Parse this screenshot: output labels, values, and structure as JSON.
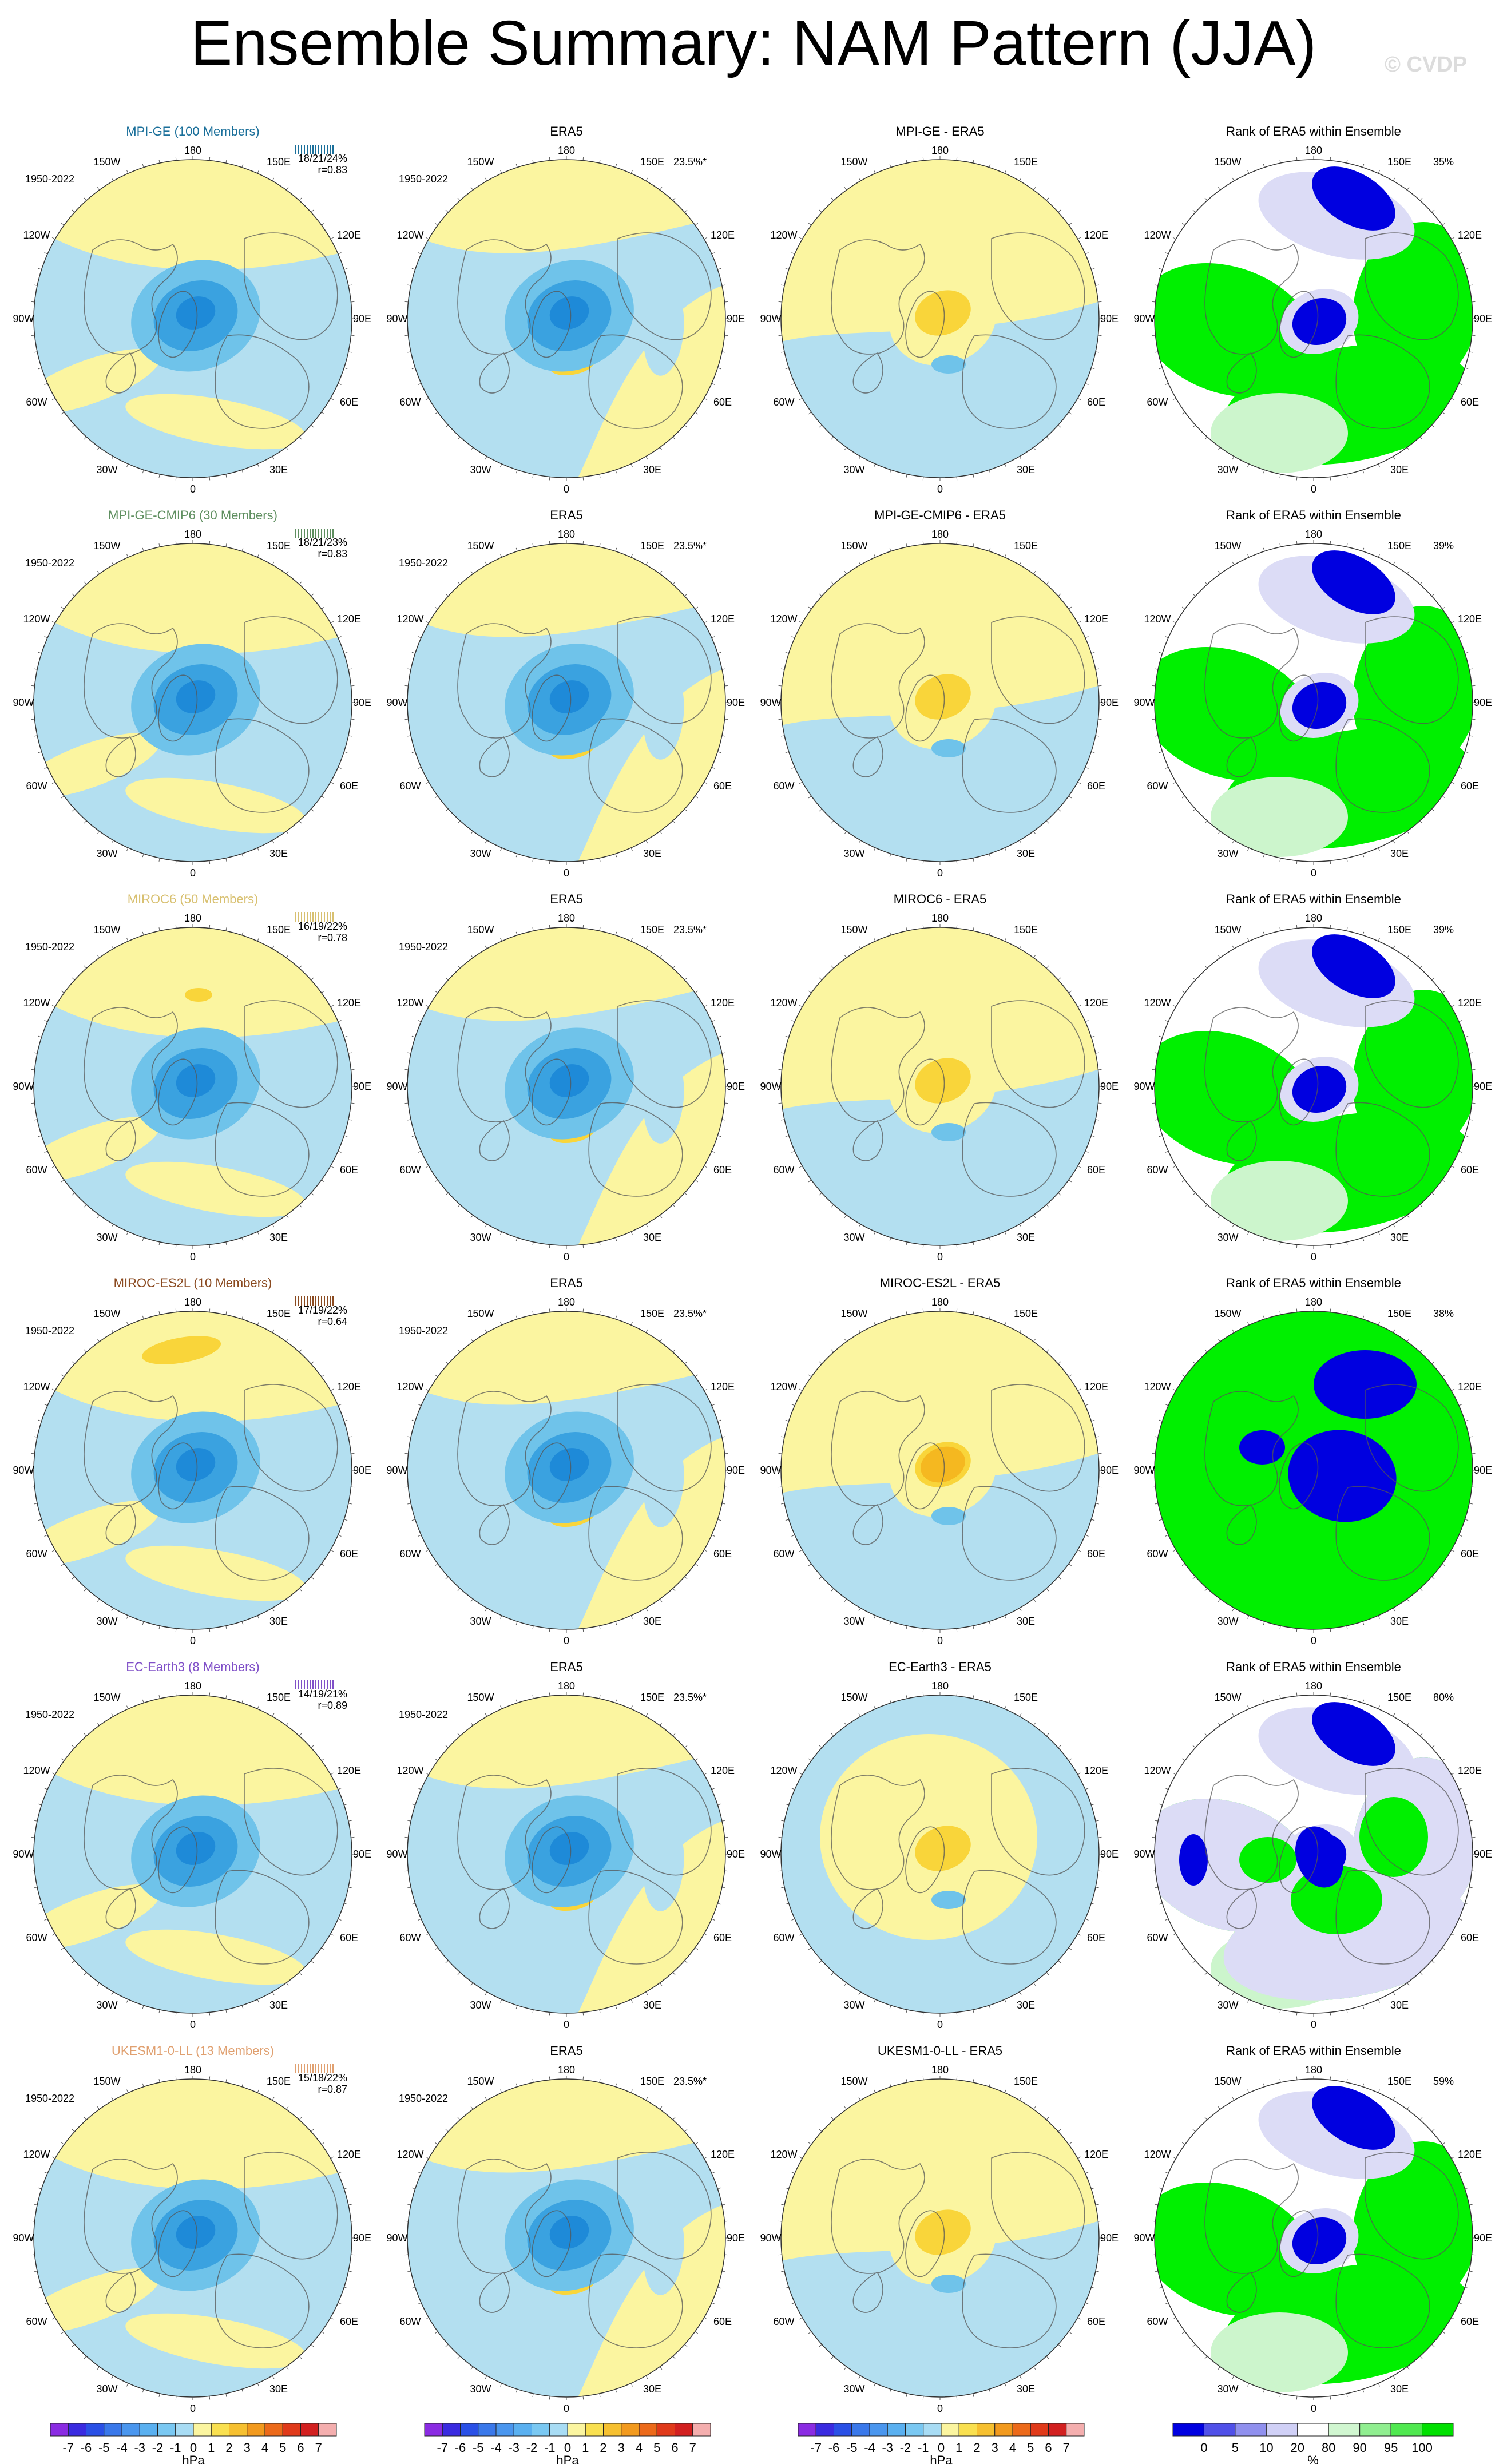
{
  "title": "Ensemble Summary: NAM Pattern (JJA)",
  "watermark": "© CVDP",
  "period": "1950-2022",
  "era5_pct": "23.5%*",
  "lon_labels": {
    "top": "180",
    "bottom": "0",
    "left": "90W",
    "right": "90E",
    "tl_outer": "150W",
    "tr_outer": "150E",
    "tl_inner": "120W",
    "tr_inner": "120E",
    "bl_inner": "60W",
    "br_inner": "60E",
    "bl_outer": "30W",
    "br_outer": "30E"
  },
  "colors": {
    "pos_fill": "#fbf5a0",
    "neg_fill": "#b3dff0",
    "pos_mid": "#f9d53a",
    "pos_strong": "#f5b820",
    "neg_mid": "#6fc3ea",
    "neg_strong": "#3aa2e0",
    "neg_core": "#1e8ad8",
    "rank_green": "#00f000",
    "rank_lightgreen": "#ccf5cc",
    "rank_blue": "#0000e0",
    "rank_lav": "#dcdcf6",
    "rank_white": "#ffffff"
  },
  "rows": [
    {
      "model": "MPI-GE (100 Members)",
      "model_color": "#1a6f9a",
      "stats": "18/21/24%",
      "r": "r=0.83",
      "diff_title": "MPI-GE - ERA5",
      "rank_pct": "35%"
    },
    {
      "model": "MPI-GE-CMIP6 (30 Members)",
      "model_color": "#5f8f60",
      "stats": "18/21/23%",
      "r": "r=0.83",
      "diff_title": "MPI-GE-CMIP6 - ERA5",
      "rank_pct": "39%"
    },
    {
      "model": "MIROC6 (50 Members)",
      "model_color": "#d8c070",
      "stats": "16/19/22%",
      "r": "r=0.78",
      "diff_title": "MIROC6 - ERA5",
      "rank_pct": "39%"
    },
    {
      "model": "MIROC-ES2L (10 Members)",
      "model_color": "#8a4a20",
      "stats": "17/19/22%",
      "r": "r=0.64",
      "diff_title": "MIROC-ES2L - ERA5",
      "rank_pct": "38%"
    },
    {
      "model": "EC-Earth3 (8 Members)",
      "model_color": "#8050c8",
      "stats": "14/19/21%",
      "r": "r=0.89",
      "diff_title": "EC-Earth3 - ERA5",
      "rank_pct": "80%"
    },
    {
      "model": "UKESM1-0-LL (13 Members)",
      "model_color": "#e0a070",
      "stats": "15/18/22%",
      "r": "r=0.87",
      "diff_title": "UKESM1-0-LL - ERA5",
      "rank_pct": "59%"
    }
  ],
  "era5_title": "ERA5",
  "rank_title": "Rank of ERA5 within Ensemble",
  "colorbar_hpa": {
    "labels": [
      "-7",
      "-6",
      "-5",
      "-4",
      "-3",
      "-2",
      "-1",
      "0",
      "1",
      "2",
      "3",
      "4",
      "5",
      "6",
      "7"
    ],
    "colors": [
      "#8a2be2",
      "#3a2be0",
      "#2a50e6",
      "#3a78ea",
      "#4a96ee",
      "#5ab0f0",
      "#7ac8f2",
      "#a8dcf4",
      "#fbf5a0",
      "#f9e050",
      "#f6c030",
      "#f29a1e",
      "#ec6a1a",
      "#e03a1a",
      "#d22020",
      "#f4aeae"
    ],
    "unit": "hPa"
  },
  "colorbar_rank": {
    "labels": [
      "0",
      "5",
      "10",
      "20",
      "80",
      "90",
      "95",
      "100"
    ],
    "colors": [
      "#0000e0",
      "#5050e8",
      "#9090ee",
      "#d0d0f6",
      "#ffffff",
      "#d0f6d0",
      "#90ee90",
      "#50e850",
      "#00e000"
    ],
    "unit": "%"
  }
}
